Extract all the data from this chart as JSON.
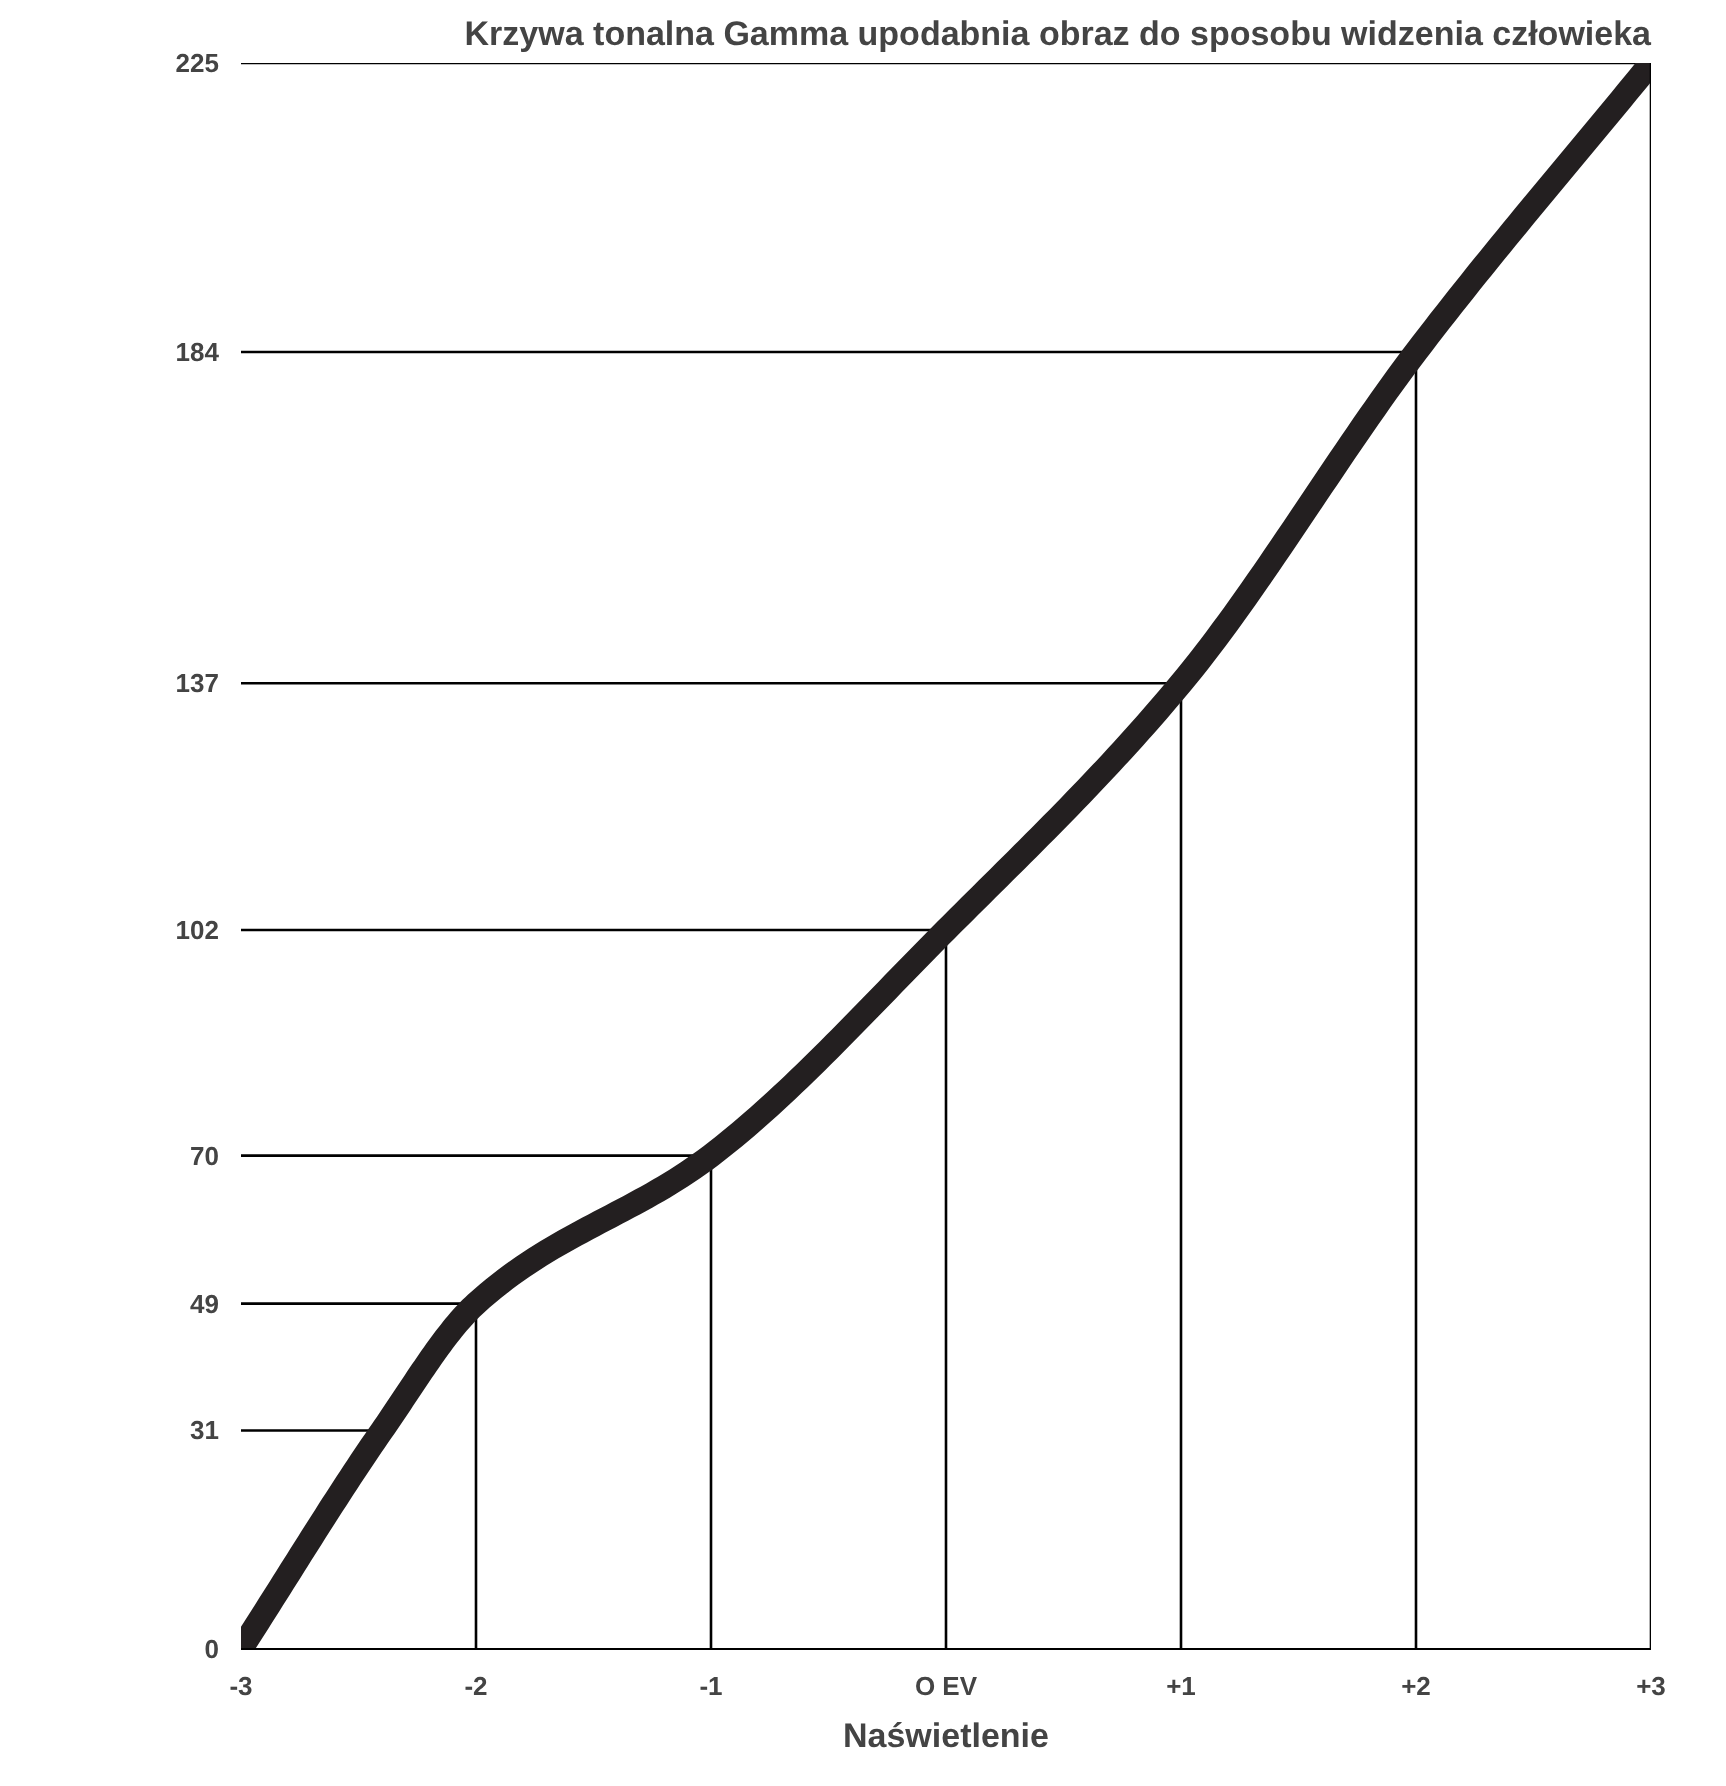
{
  "chart_data": {
    "type": "line",
    "title": "Krzywa tonalna Gamma upodabnia obraz do sposobu widzenia człowieka",
    "xlabel": "Naświetlenie",
    "x": [
      -3,
      -2.4,
      -2,
      -1,
      0,
      1,
      2,
      3
    ],
    "series": [
      {
        "color": "#000000",
        "x": [
          -3,
          -2.4
        ],
        "values": [
          31,
          31
        ]
      },
      {
        "color": "#000000",
        "x": [
          -3,
          -2,
          -2
        ],
        "values": [
          49,
          49,
          0
        ]
      },
      {
        "color": "#000000",
        "x": [
          -3,
          -1,
          -1
        ],
        "values": [
          70,
          70,
          0
        ]
      },
      {
        "color": "#000000",
        "x": [
          -3,
          0,
          0
        ],
        "values": [
          102,
          102,
          0
        ]
      },
      {
        "color": "#000000",
        "x": [
          -3,
          1,
          1
        ],
        "values": [
          137,
          137,
          0
        ]
      },
      {
        "color": "#000000",
        "x": [
          -3,
          2,
          2
        ],
        "values": [
          184,
          184,
          0
        ]
      },
      {
        "color": "#000000",
        "x": [
          -3,
          3
        ],
        "values": [
          225,
          225
        ]
      },
      {
        "color": "#231f20",
        "values": [
          0,
          31,
          49,
          70,
          102,
          137,
          184,
          225
        ]
      }
    ],
    "xlim": [
      -3,
      3
    ],
    "ylim": [
      0,
      225
    ],
    "ref_lines": [
      {
        "axis": "x",
        "value": 3,
        "color": "#000000"
      }
    ],
    "xticks": [
      {
        "value": -3,
        "label": "-3"
      },
      {
        "value": -2,
        "label": "-2"
      },
      {
        "value": -1,
        "label": "-1"
      },
      {
        "value": 0,
        "label": "O EV"
      },
      {
        "value": 1,
        "label": "+1"
      },
      {
        "value": 2,
        "label": "+2"
      },
      {
        "value": 3,
        "label": "+3"
      }
    ],
    "yticks": [
      0,
      31,
      49,
      70,
      102,
      137,
      184,
      225
    ],
    "grid": false,
    "line_style": "solid"
  }
}
